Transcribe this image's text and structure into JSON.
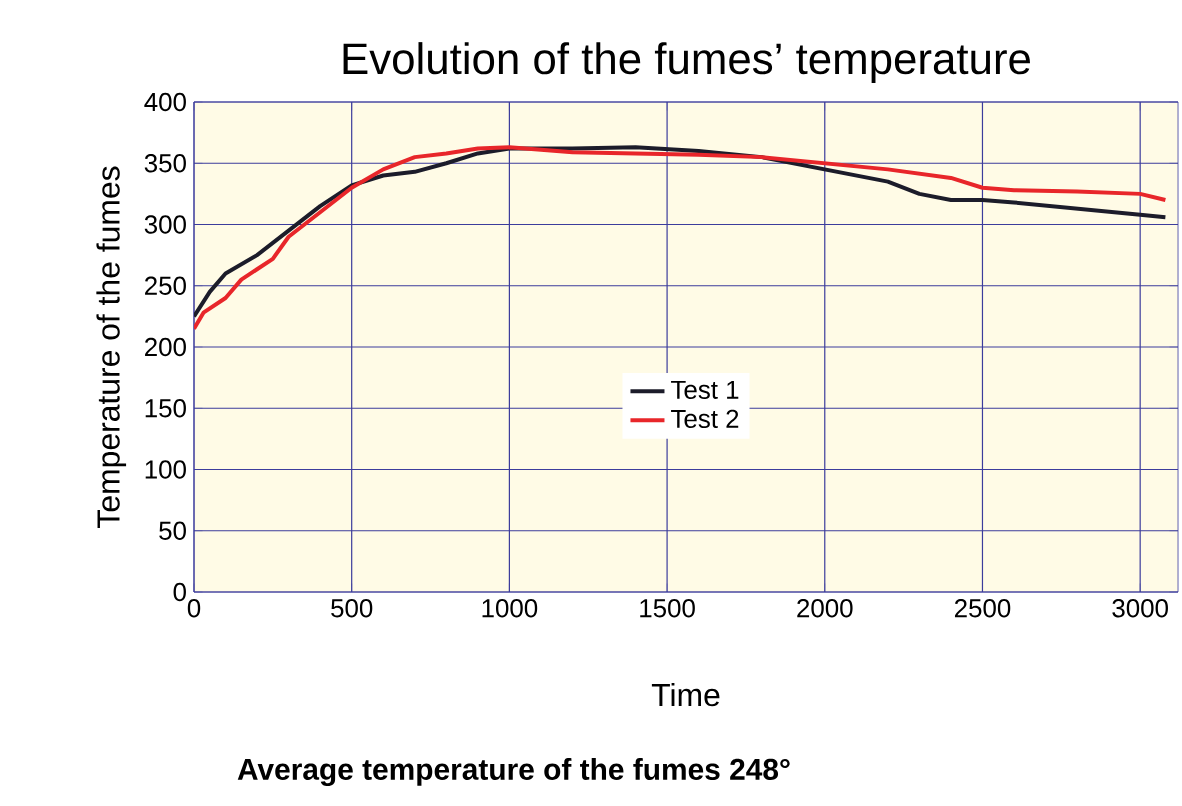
{
  "chart_data": {
    "type": "line",
    "title": "Evolution of the fumes’ temperature",
    "xlabel": "Time",
    "ylabel": "Temperature of the fumes",
    "annotations": [
      "**Average temperature of the fumes 248°**"
    ],
    "xlim": [
      0,
      3120
    ],
    "xticks": [
      0,
      500,
      1000,
      1500,
      2000,
      2500,
      3000
    ],
    "ylim": [
      0,
      400
    ],
    "yticks": [
      0,
      50,
      100,
      150,
      200,
      250,
      300,
      350,
      400
    ],
    "grid": true,
    "legend": "center",
    "line_style": "solid",
    "series": [
      {
        "name": "Test 1",
        "color": "#1c1c2a",
        "x": [
          0,
          50,
          100,
          200,
          300,
          400,
          500,
          600,
          700,
          800,
          900,
          1000,
          1200,
          1400,
          1600,
          1800,
          2000,
          2200,
          2300,
          2400,
          2500,
          2600,
          2800,
          3000,
          3080
        ],
        "values": [
          225,
          245,
          260,
          275,
          295,
          315,
          332,
          340,
          343,
          350,
          358,
          362,
          362,
          363,
          360,
          355,
          345,
          335,
          325,
          320,
          320,
          318,
          313,
          308,
          306
        ]
      },
      {
        "name": "Test 2",
        "color": "#e8262a",
        "x": [
          0,
          30,
          100,
          150,
          250,
          300,
          400,
          500,
          600,
          700,
          800,
          900,
          1000,
          1200,
          1400,
          1600,
          1800,
          2000,
          2200,
          2400,
          2500,
          2600,
          2800,
          3000,
          3080
        ],
        "values": [
          215,
          228,
          240,
          255,
          272,
          290,
          310,
          330,
          345,
          355,
          358,
          362,
          363,
          359,
          358,
          357,
          355,
          350,
          345,
          338,
          330,
          328,
          327,
          325,
          320
        ]
      }
    ]
  }
}
